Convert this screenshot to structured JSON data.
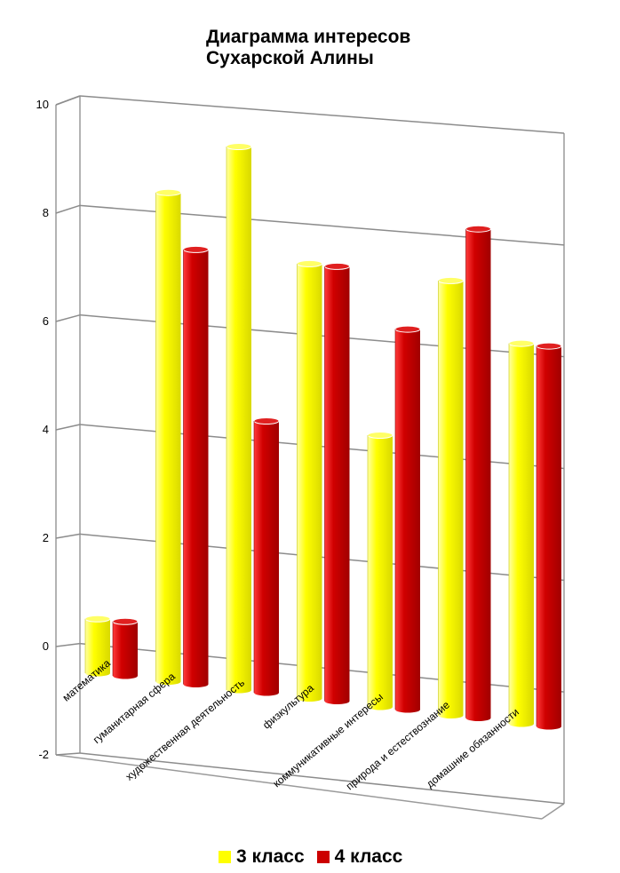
{
  "chart_data": {
    "type": "bar",
    "title_lines": [
      "Диаграмма интересов",
      "Сухарской Алины"
    ],
    "categories": [
      "математика",
      "гуманитарная сфера",
      "художественная деятельность",
      "физкультура",
      "коммуникативные интересы",
      "природа и естествознание",
      "домашние обязанности"
    ],
    "series": [
      {
        "name": "3 класс",
        "color": "#ffff00",
        "values": [
          1,
          9,
          10,
          8,
          5,
          8,
          7
        ]
      },
      {
        "name": "4 класс",
        "color": "#cc0000",
        "values": [
          1,
          8,
          5,
          8,
          7,
          9,
          7
        ]
      }
    ],
    "y_ticks": [
      "-2",
      "0",
      "2",
      "4",
      "6",
      "8",
      "10"
    ],
    "ylim": [
      -2,
      10
    ],
    "grid": true,
    "legend_position": "bottom",
    "projection": "3d-perspective"
  }
}
